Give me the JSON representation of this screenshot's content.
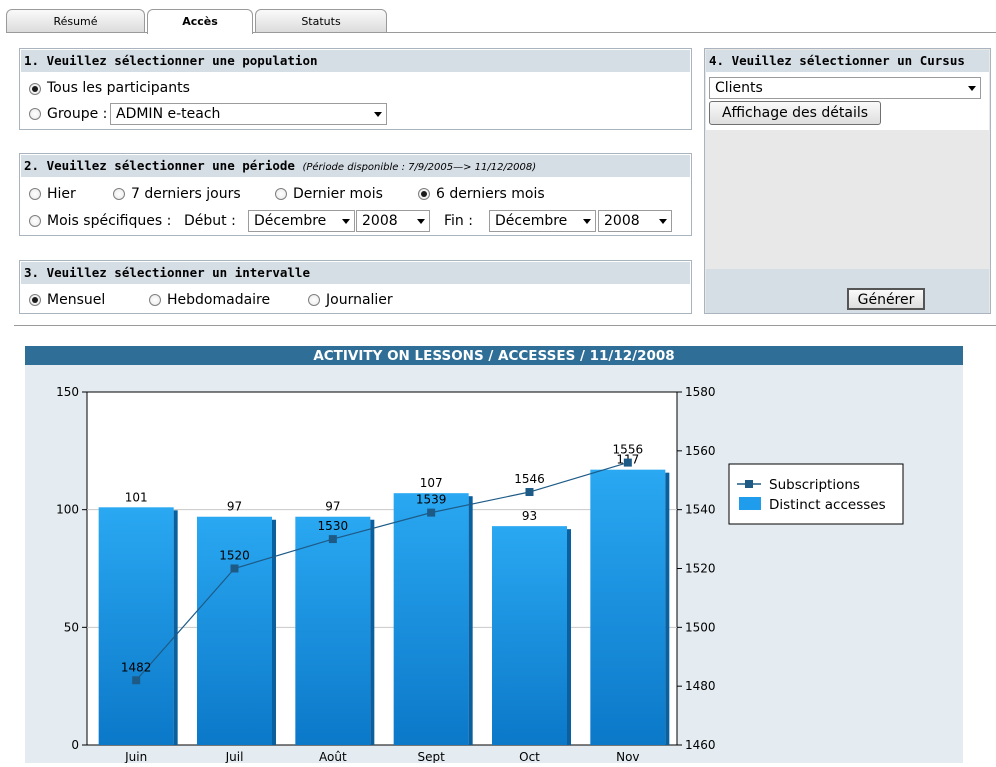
{
  "tabs": [
    {
      "label": "Résumé",
      "active": false
    },
    {
      "label": "Accès",
      "active": true
    },
    {
      "label": "Statuts",
      "active": false
    }
  ],
  "population": {
    "title": "1. Veuillez sélectionner une population",
    "all_label": "Tous les participants",
    "group_label": "Groupe :",
    "group_value": "ADMIN e-teach",
    "selected": "all"
  },
  "periode": {
    "title": "2. Veuillez sélectionner une période",
    "note": "(Période disponible : 7/9/2005—> 11/12/2008)",
    "options": [
      "Hier",
      "7 derniers jours",
      "Dernier mois",
      "6 derniers mois"
    ],
    "selected": "6 derniers mois",
    "specific_label": "Mois spécifiques :",
    "debut_label": "Début :",
    "debut_month": "Décembre",
    "debut_year": "2008",
    "fin_label": "Fin :",
    "fin_month": "Décembre",
    "fin_year": "2008"
  },
  "intervalle": {
    "title": "3. Veuillez sélectionner un intervalle",
    "options": [
      "Mensuel",
      "Hebdomadaire",
      "Journalier"
    ],
    "selected": "Mensuel"
  },
  "cursus": {
    "title": "4. Veuillez sélectionner un Cursus",
    "value": "Clients",
    "details_button": "Affichage des détails",
    "generate_button": "Générer"
  },
  "colors": {
    "bar": "#1f9cec",
    "line": "#1d5a86",
    "header": "#2f6e97"
  },
  "chart_data": {
    "type": "bar",
    "title": "ACTIVITY ON LESSONS / ACCESSES / 11/12/2008",
    "categories": [
      "Juin",
      "Juil",
      "Août",
      "Sept",
      "Oct",
      "Nov"
    ],
    "series": [
      {
        "name": "Distinct accesses",
        "type": "bar",
        "axis": "left",
        "values": [
          101,
          97,
          97,
          107,
          93,
          117
        ]
      },
      {
        "name": "Subscriptions",
        "type": "line",
        "axis": "right",
        "values": [
          1482,
          1520,
          1530,
          1539,
          1546,
          1556
        ]
      }
    ],
    "left_axis": {
      "ylim": [
        0,
        150
      ],
      "ticks": [
        0,
        50,
        100,
        150
      ]
    },
    "right_axis": {
      "ylim": [
        1460,
        1580
      ],
      "ticks": [
        1460,
        1480,
        1500,
        1520,
        1540,
        1560,
        1580
      ]
    },
    "legend": {
      "position": "right",
      "entries": [
        "Subscriptions",
        "Distinct accesses"
      ]
    },
    "grid": true
  }
}
